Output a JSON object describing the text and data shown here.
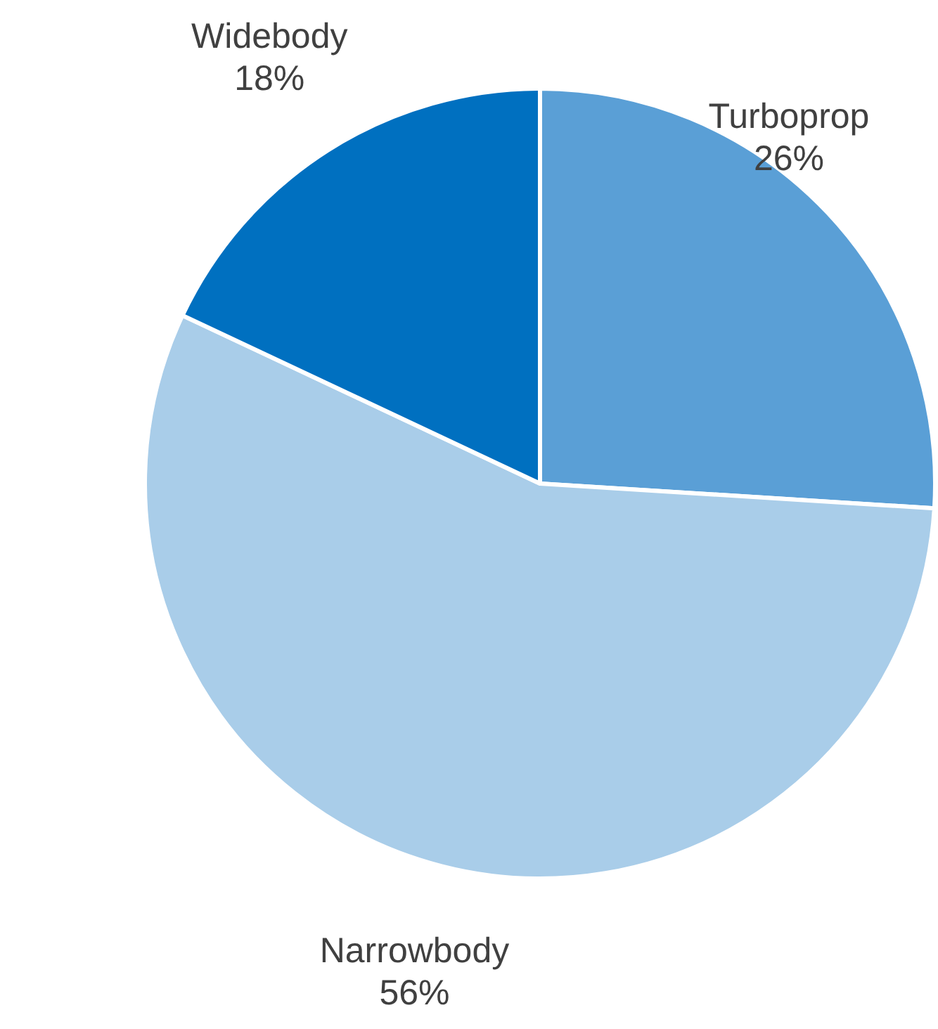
{
  "chart_data": {
    "type": "pie",
    "categories": [
      "Turboprop",
      "Narrowbody",
      "Widebody"
    ],
    "values": [
      26,
      56,
      18
    ],
    "value_labels": [
      "26%",
      "56%",
      "18%"
    ],
    "colors": [
      "#5a9fd6",
      "#a9cde9",
      "#0070c0"
    ],
    "legend": false
  }
}
